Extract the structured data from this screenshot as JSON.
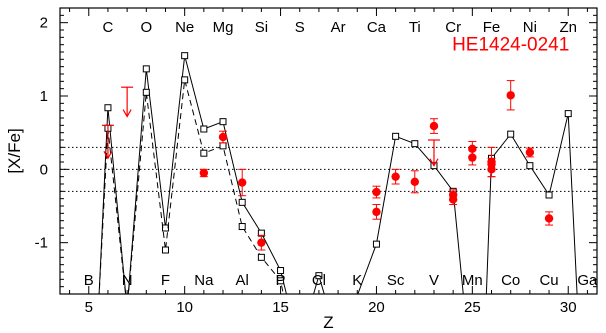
{
  "chart_data": {
    "type": "scatter",
    "xlabel": "Z",
    "ylabel": "[X/Fe]",
    "xlim": [
      3.5,
      31.5
    ],
    "ylim": [
      -1.7,
      2.2
    ],
    "xticks": [
      5,
      10,
      15,
      20,
      25,
      30
    ],
    "yticks": [
      -1,
      0,
      1,
      2
    ],
    "annotation": {
      "text": "HE1424-0241",
      "color": "#ff0000",
      "at": [
        27.0,
        1.62
      ]
    },
    "reference_lines": [
      0.3,
      0.0,
      -0.3
    ],
    "top_elements": [
      {
        "z": 6,
        "symbol": "C"
      },
      {
        "z": 8,
        "symbol": "O"
      },
      {
        "z": 10,
        "symbol": "Ne"
      },
      {
        "z": 12,
        "symbol": "Mg"
      },
      {
        "z": 14,
        "symbol": "Si"
      },
      {
        "z": 16,
        "symbol": "S"
      },
      {
        "z": 18,
        "symbol": "Ar"
      },
      {
        "z": 20,
        "symbol": "Ca"
      },
      {
        "z": 22,
        "symbol": "Ti"
      },
      {
        "z": 24,
        "symbol": "Cr"
      },
      {
        "z": 26,
        "symbol": "Fe"
      },
      {
        "z": 28,
        "symbol": "Ni"
      },
      {
        "z": 30,
        "symbol": "Zn"
      }
    ],
    "bottom_elements": [
      {
        "z": 5,
        "symbol": "B"
      },
      {
        "z": 7,
        "symbol": "N"
      },
      {
        "z": 9,
        "symbol": "F"
      },
      {
        "z": 11,
        "symbol": "Na"
      },
      {
        "z": 13,
        "symbol": "Al"
      },
      {
        "z": 15,
        "symbol": "P"
      },
      {
        "z": 17,
        "symbol": "Cl"
      },
      {
        "z": 19,
        "symbol": "K"
      },
      {
        "z": 21,
        "symbol": "Sc"
      },
      {
        "z": 23,
        "symbol": "V"
      },
      {
        "z": 25,
        "symbol": "Mn"
      },
      {
        "z": 27,
        "symbol": "Co"
      },
      {
        "z": 29,
        "symbol": "Cu"
      },
      {
        "z": 31,
        "symbol": "Ga"
      }
    ],
    "series": [
      {
        "style": "solid-open-squares",
        "color": "#000000",
        "points": [
          [
            5.5,
            -1.9
          ],
          [
            6,
            0.84
          ],
          [
            7,
            -1.9
          ],
          [
            8,
            1.37
          ],
          [
            9,
            -0.8
          ],
          [
            10,
            1.55
          ],
          [
            11,
            0.55
          ],
          [
            12,
            0.65
          ],
          [
            13,
            -0.45
          ],
          [
            14,
            -0.87
          ],
          [
            15,
            -1.38
          ],
          [
            15.5,
            -1.9
          ],
          [
            16.5,
            -1.9
          ],
          [
            17,
            -1.45
          ],
          [
            17.5,
            -1.9
          ],
          [
            18,
            -1.72
          ],
          [
            19,
            -1.72
          ],
          [
            20,
            -1.02
          ],
          [
            21,
            0.45
          ],
          [
            22,
            0.35
          ],
          [
            23,
            0.05
          ],
          [
            24,
            -0.3
          ],
          [
            24.6,
            -1.9
          ],
          [
            25.7,
            -1.9
          ],
          [
            26,
            0.15
          ],
          [
            27,
            0.48
          ],
          [
            28,
            0.05
          ],
          [
            29,
            -0.35
          ],
          [
            30,
            0.76
          ],
          [
            30.5,
            -1.9
          ]
        ]
      },
      {
        "style": "dashed-open-squares",
        "color": "#000000",
        "points": [
          [
            5.5,
            -1.9
          ],
          [
            6,
            0.56
          ],
          [
            7,
            -1.9
          ],
          [
            8,
            1.05
          ],
          [
            9,
            -1.1
          ],
          [
            10,
            1.22
          ],
          [
            11,
            0.22
          ],
          [
            12,
            0.32
          ],
          [
            13,
            -0.78
          ],
          [
            14,
            -1.2
          ],
          [
            15,
            -1.52
          ],
          [
            15.3,
            -1.9
          ]
        ]
      }
    ],
    "observed": {
      "color": "#ff0000",
      "points": [
        {
          "x": 11,
          "y": -0.05,
          "err": 0.05
        },
        {
          "x": 12,
          "y": 0.44,
          "err": 0.08
        },
        {
          "x": 13,
          "y": -0.18,
          "err": 0.18
        },
        {
          "x": 14,
          "y": -1.0,
          "err": 0.1
        },
        {
          "x": 20,
          "y": -0.31,
          "err": 0.08
        },
        {
          "x": 20,
          "y": -0.58,
          "err": 0.1
        },
        {
          "x": 21,
          "y": -0.1,
          "err": 0.1
        },
        {
          "x": 22,
          "y": -0.17,
          "err": 0.15
        },
        {
          "x": 23,
          "y": 0.59,
          "err": 0.1
        },
        {
          "x": 24,
          "y": -0.35,
          "err": 0.07
        },
        {
          "x": 24,
          "y": -0.41,
          "err": 0.07
        },
        {
          "x": 25,
          "y": 0.28,
          "err": 0.1
        },
        {
          "x": 25,
          "y": 0.16,
          "err": 0.1
        },
        {
          "x": 26,
          "y": 0.07,
          "err": 0.08
        },
        {
          "x": 26,
          "y": 0.0,
          "err": 0.1
        },
        {
          "x": 26,
          "y": 0.1,
          "err": 0.2
        },
        {
          "x": 27,
          "y": 1.01,
          "err": 0.2
        },
        {
          "x": 28,
          "y": 0.23,
          "err": 0.06
        },
        {
          "x": 29,
          "y": -0.67,
          "err": 0.09
        }
      ],
      "upper_limits": [
        {
          "x": 6,
          "y": 0.6,
          "to": 0.15
        },
        {
          "x": 7,
          "y": 1.12,
          "to": 0.72
        },
        {
          "x": 23,
          "y": 0.4,
          "to": 0.05
        }
      ]
    }
  }
}
